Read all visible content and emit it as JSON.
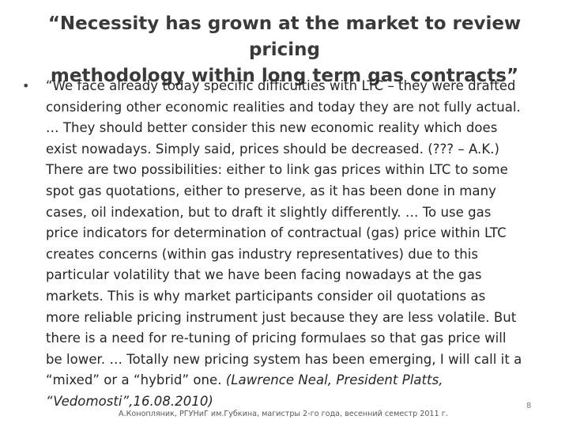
{
  "slide": {
    "title_lines": [
      "“Necessity has grown at the market to review pricing",
      "methodology within long term gas contracts”"
    ],
    "bullet_marker": "•",
    "quote_lines": [
      "“We face already today specific difficulties with LTC – they were drafted",
      "considering other economic realities and today they are not fully actual.",
      "… They should better consider this new economic reality which does",
      "exist nowadays. Simply said, prices should be decreased. (??? – A.K.)",
      "There are two possibilities: either to link gas prices within LTC to some",
      "spot gas quotations, either to preserve, as it has been done in many",
      "cases, oil indexation, but to draft it slightly differently. … To use gas",
      "price indicators for determination of contractual (gas) price within LTC",
      "creates concerns (within gas industry representatives) due to this",
      "particular volatility that we have been facing nowadays at the gas",
      "markets. This is why market participants consider oil quotations as",
      "more reliable pricing instrument just because they are less volatile. But",
      "there is a need for re-tuning of pricing formulaes so that gas price will",
      "be lower. … Totally new pricing system has been emerging, I will call it a",
      "“mixed” or a “hybrid” one. "
    ],
    "citation_part1": "(Lawrence Neal, President Platts,",
    "citation_part2": "“Vedomosti”,16.08.2010)",
    "footer": "А.Конопляник, РГУНиГ им.Губкина, магистры 2-го года, весенний семестр 2011 г.",
    "page_number": "8"
  }
}
